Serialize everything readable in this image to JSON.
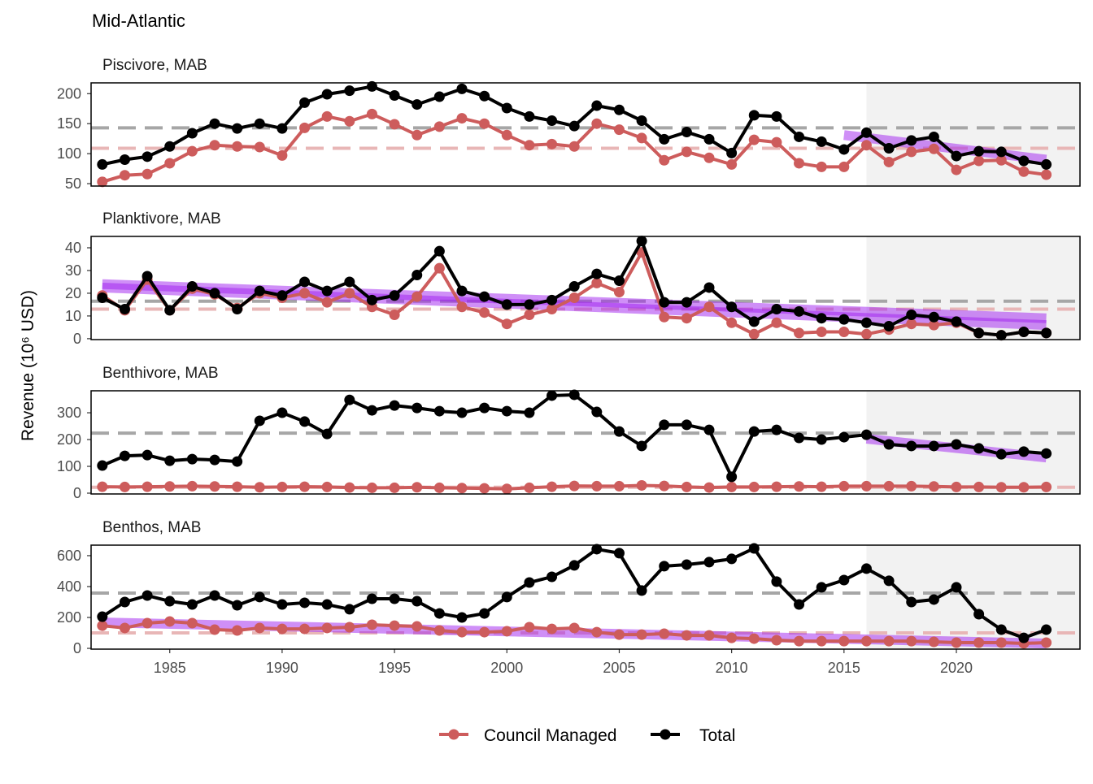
{
  "title": "Mid-Atlantic",
  "ylabel": "Revenue (10⁶ USD)",
  "legend": [
    {
      "name": "Council Managed",
      "color": "#cd5c5c"
    },
    {
      "name": "Total",
      "color": "#000000"
    }
  ],
  "chart_data": [
    {
      "type": "line",
      "title": "Piscivore, MAB",
      "x": [
        1982,
        1983,
        1984,
        1985,
        1986,
        1987,
        1988,
        1989,
        1990,
        1991,
        1992,
        1993,
        1994,
        1995,
        1996,
        1997,
        1998,
        1999,
        2000,
        2001,
        2002,
        2003,
        2004,
        2005,
        2006,
        2007,
        2008,
        2009,
        2010,
        2011,
        2012,
        2013,
        2014,
        2015,
        2016,
        2017,
        2018,
        2019,
        2020,
        2021,
        2022,
        2023,
        2024
      ],
      "xlim": [
        1981.5,
        2025.5
      ],
      "ylim": [
        46,
        218
      ],
      "yticks": [
        50,
        100,
        150,
        200
      ],
      "highlight_from": 2016,
      "series": [
        {
          "color": "#cd5c5c",
          "mean": 109,
          "values": [
            53,
            64,
            66,
            84,
            104,
            114,
            112,
            111,
            97,
            143,
            162,
            154,
            166,
            149,
            131,
            145,
            159,
            150,
            131,
            114,
            116,
            112,
            150,
            140,
            126,
            89,
            103,
            93,
            82,
            123,
            119,
            84,
            78,
            78,
            114,
            86,
            103,
            108,
            73,
            88,
            89,
            70,
            65
          ]
        },
        {
          "color": "#000000",
          "mean": 143,
          "trend": {
            "x": [
              2015,
              2024
            ],
            "values": [
              131,
              90
            ]
          },
          "values": [
            82,
            90,
            95,
            112,
            134,
            150,
            142,
            150,
            142,
            185,
            199,
            205,
            212,
            197,
            182,
            195,
            208,
            196,
            176,
            162,
            155,
            146,
            180,
            173,
            155,
            124,
            136,
            124,
            101,
            164,
            162,
            128,
            120,
            107,
            135,
            109,
            122,
            128,
            96,
            104,
            103,
            88,
            82
          ]
        }
      ]
    },
    {
      "type": "line",
      "title": "Planktivore, MAB",
      "x": [
        1982,
        1983,
        1984,
        1985,
        1986,
        1987,
        1988,
        1989,
        1990,
        1991,
        1992,
        1993,
        1994,
        1995,
        1996,
        1997,
        1998,
        1999,
        2000,
        2001,
        2002,
        2003,
        2004,
        2005,
        2006,
        2007,
        2008,
        2009,
        2010,
        2011,
        2012,
        2013,
        2014,
        2015,
        2016,
        2017,
        2018,
        2019,
        2020,
        2021,
        2022,
        2023,
        2024
      ],
      "xlim": [
        1981.5,
        2025.5
      ],
      "ylim": [
        -0.4,
        45
      ],
      "yticks": [
        0,
        10,
        20,
        30,
        40
      ],
      "highlight_from": 2016,
      "series": [
        {
          "color": "#cd5c5c",
          "mean": 13,
          "trend": {
            "x": [
              1982,
              2024
            ],
            "values": [
              22.5,
              6
            ]
          },
          "values": [
            19,
            12.5,
            26,
            12.5,
            22,
            19.5,
            13.5,
            20,
            18,
            20,
            16,
            20,
            14,
            10.5,
            18.5,
            31,
            14,
            11.5,
            6.5,
            10.5,
            13,
            18,
            24.5,
            20.5,
            38,
            9.5,
            9,
            14,
            7,
            2,
            7,
            2.5,
            3,
            3,
            2,
            4,
            6.5,
            6,
            7,
            2.5,
            1.5,
            3,
            2.5
          ]
        },
        {
          "color": "#000000",
          "mean": 16.5,
          "trend": {
            "x": [
              1982,
              2024
            ],
            "values": [
              24,
              9
            ]
          },
          "values": [
            18,
            13,
            27.5,
            12.5,
            23,
            20,
            13,
            21,
            19,
            25,
            21,
            25,
            17,
            19,
            28,
            38.5,
            21,
            18.5,
            15,
            15,
            17,
            23,
            28.5,
            25.5,
            43,
            16,
            16,
            22.5,
            14,
            7.5,
            13,
            12,
            9,
            8.5,
            7,
            5.5,
            10.5,
            9.5,
            7.5,
            2.5,
            1.5,
            3,
            2.5
          ]
        }
      ]
    },
    {
      "type": "line",
      "title": "Benthivore, MAB",
      "x": [
        1982,
        1983,
        1984,
        1985,
        1986,
        1987,
        1988,
        1989,
        1990,
        1991,
        1992,
        1993,
        1994,
        1995,
        1996,
        1997,
        1998,
        1999,
        2000,
        2001,
        2002,
        2003,
        2004,
        2005,
        2006,
        2007,
        2008,
        2009,
        2010,
        2011,
        2012,
        2013,
        2014,
        2015,
        2016,
        2017,
        2018,
        2019,
        2020,
        2021,
        2022,
        2023,
        2024
      ],
      "xlim": [
        1981.5,
        2025.5
      ],
      "ylim": [
        -3,
        382
      ],
      "yticks": [
        0,
        100,
        200,
        300
      ],
      "highlight_from": 2016,
      "series": [
        {
          "color": "#cd5c5c",
          "mean": 22,
          "values": [
            24,
            23,
            24,
            25,
            26,
            25,
            24,
            22,
            23,
            24,
            23,
            21,
            20,
            20,
            22,
            20,
            19,
            18,
            16,
            20,
            24,
            27,
            26,
            26,
            29,
            27,
            23,
            21,
            23,
            23,
            24,
            25,
            24,
            26,
            26,
            26,
            26,
            25,
            23,
            23,
            22,
            22,
            23
          ]
        },
        {
          "color": "#000000",
          "mean": 224,
          "trend": {
            "x": [
              2016,
              2024
            ],
            "values": [
              203,
              133
            ]
          },
          "values": [
            103,
            139,
            142,
            121,
            127,
            124,
            118,
            270,
            300,
            267,
            221,
            348,
            309,
            327,
            318,
            306,
            300,
            318,
            306,
            300,
            364,
            367,
            303,
            230,
            176,
            255,
            255,
            236,
            61,
            230,
            236,
            206,
            200,
            209,
            218,
            182,
            176,
            176,
            182,
            167,
            145,
            155,
            148
          ]
        }
      ]
    },
    {
      "type": "line",
      "title": "Benthos, MAB",
      "x": [
        1982,
        1983,
        1984,
        1985,
        1986,
        1987,
        1988,
        1989,
        1990,
        1991,
        1992,
        1993,
        1994,
        1995,
        1996,
        1997,
        1998,
        1999,
        2000,
        2001,
        2002,
        2003,
        2004,
        2005,
        2006,
        2007,
        2008,
        2009,
        2010,
        2011,
        2012,
        2013,
        2014,
        2015,
        2016,
        2017,
        2018,
        2019,
        2020,
        2021,
        2022,
        2023,
        2024
      ],
      "xlim": [
        1981.5,
        2025.5
      ],
      "ylim": [
        -5,
        668
      ],
      "yticks": [
        0,
        200,
        400,
        600
      ],
      "xticks": [
        1985,
        1990,
        1995,
        2000,
        2005,
        2010,
        2015,
        2020
      ],
      "highlight_from": 2016,
      "series": [
        {
          "color": "#cd5c5c",
          "mean": 100,
          "trend": {
            "x": [
              1982,
              2024
            ],
            "values": [
              168,
              32
            ]
          },
          "values": [
            147,
            132,
            163,
            174,
            163,
            121,
            116,
            132,
            126,
            126,
            132,
            137,
            153,
            147,
            142,
            116,
            105,
            105,
            111,
            137,
            126,
            132,
            105,
            89,
            89,
            95,
            84,
            84,
            68,
            63,
            53,
            47,
            47,
            47,
            47,
            47,
            47,
            42,
            37,
            37,
            37,
            32,
            37
          ]
        },
        {
          "color": "#000000",
          "mean": 358,
          "values": [
            205,
            300,
            342,
            305,
            284,
            342,
            279,
            332,
            284,
            295,
            284,
            253,
            321,
            321,
            305,
            226,
            200,
            226,
            332,
            426,
            463,
            537,
            642,
            616,
            374,
            532,
            542,
            558,
            579,
            647,
            432,
            284,
            395,
            442,
            516,
            437,
            300,
            316,
            395,
            221,
            121,
            68,
            121
          ]
        }
      ]
    }
  ]
}
